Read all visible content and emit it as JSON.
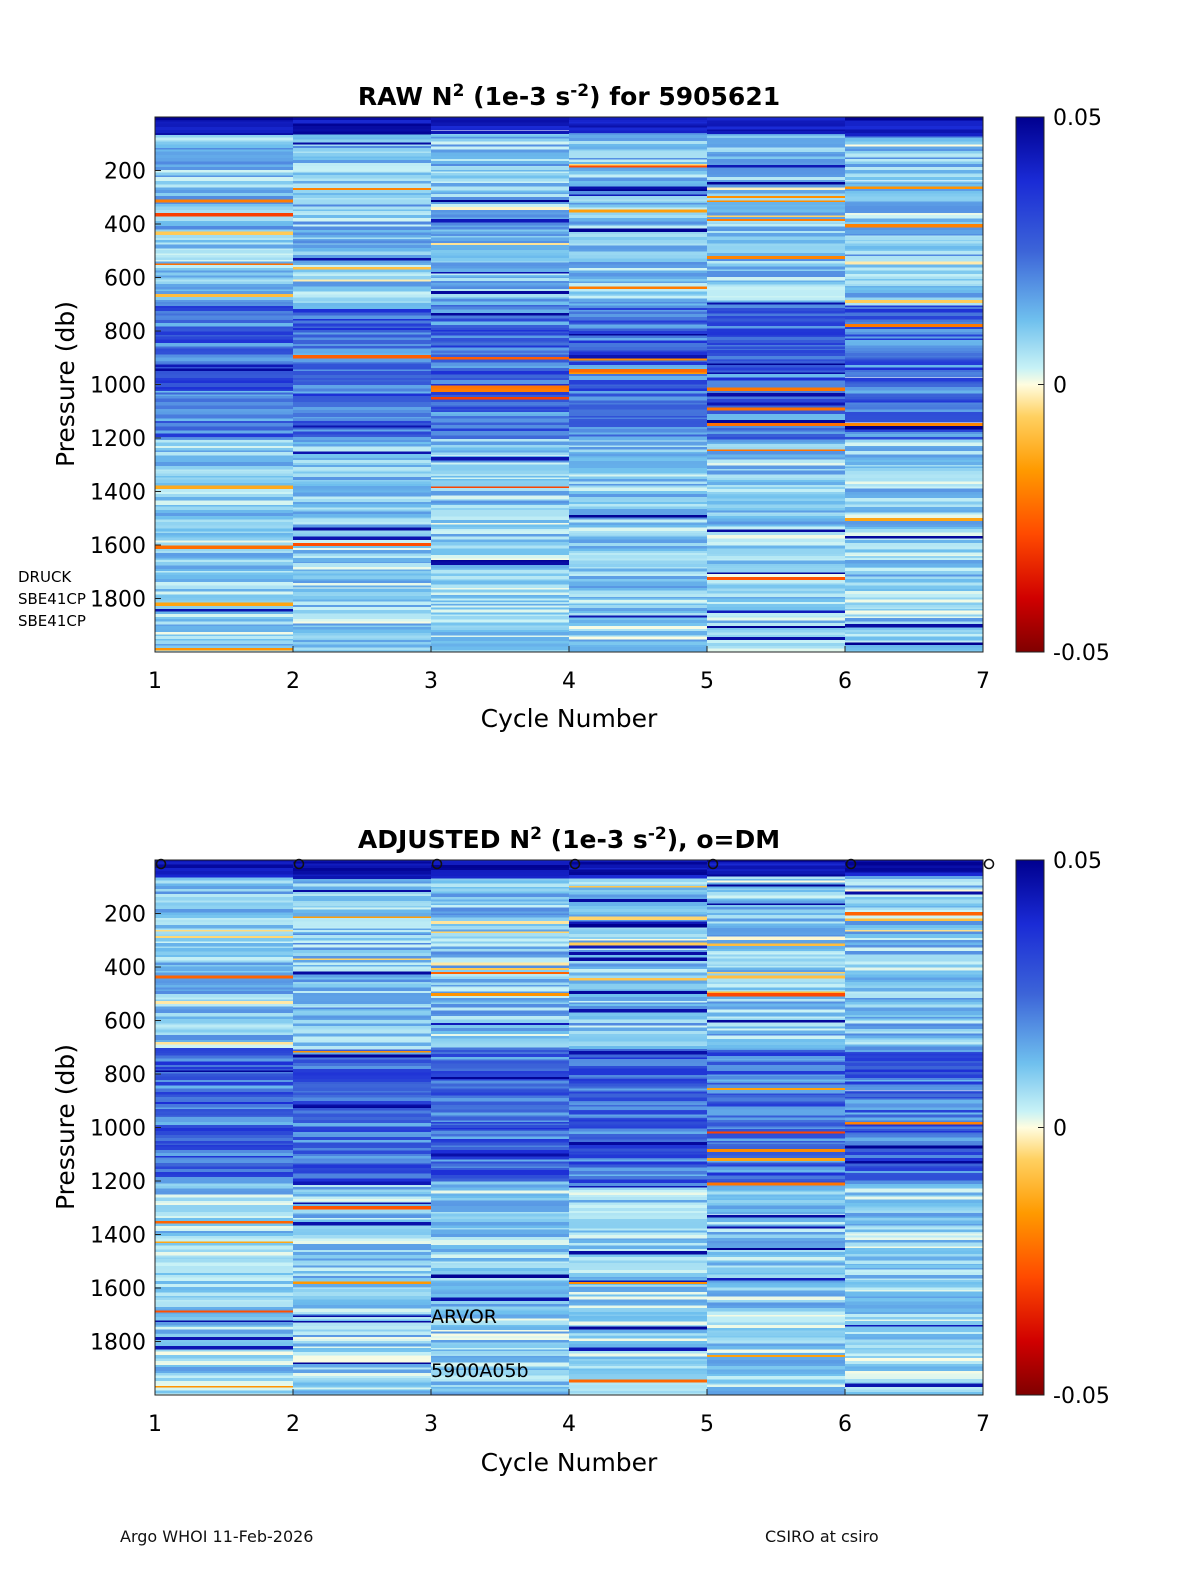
{
  "chart_data": [
    {
      "type": "heatmap",
      "title_parts": [
        "RAW N",
        "2",
        " (1e-3 s",
        "-2",
        ") for 5905621"
      ],
      "title": "RAW N2 (1e-3 s-2) for 5905621",
      "xlabel": "Cycle Number",
      "ylabel": "Pressure (db)",
      "xlim": [
        1,
        7
      ],
      "ylim": [
        0,
        2000
      ],
      "y_reversed": true,
      "xticks": [
        "1",
        "2",
        "3",
        "4",
        "5",
        "6",
        "7"
      ],
      "yticks": [
        "200",
        "400",
        "600",
        "800",
        "1000",
        "1200",
        "1400",
        "1600",
        "1800"
      ],
      "columns": [
        1,
        2,
        3,
        4,
        5,
        6
      ],
      "colorbar": {
        "min": -0.05,
        "max": 0.05,
        "ticks": [
          "0.05",
          "0",
          "-0.05"
        ]
      },
      "annotations": [
        "DRUCK",
        "SBE41CP",
        "SBE41CP"
      ],
      "dm_markers": []
    },
    {
      "type": "heatmap",
      "title_parts": [
        "ADJUSTED N",
        "2",
        " (1e-3 s",
        "-2",
        "), o=DM"
      ],
      "title": "ADJUSTED N2 (1e-3 s-2), o=DM",
      "xlabel": "Cycle Number",
      "ylabel": "Pressure (db)",
      "xlim": [
        1,
        7
      ],
      "ylim": [
        0,
        2000
      ],
      "y_reversed": true,
      "xticks": [
        "1",
        "2",
        "3",
        "4",
        "5",
        "6",
        "7"
      ],
      "yticks": [
        "200",
        "400",
        "600",
        "800",
        "1000",
        "1200",
        "1400",
        "1600",
        "1800"
      ],
      "columns": [
        1,
        2,
        3,
        4,
        5,
        6
      ],
      "colorbar": {
        "min": -0.05,
        "max": 0.05,
        "ticks": [
          "0.05",
          "0",
          "-0.05"
        ]
      },
      "annotations": [
        "ARVOR",
        "5900A05b"
      ],
      "dm_markers": [
        1,
        2,
        3,
        4,
        5,
        6,
        7
      ]
    }
  ],
  "footer": {
    "left": "Argo WHOI 11-Feb-2026",
    "right": "CSIRO at csiro"
  },
  "colors": {
    "dark_blue": "#00008f",
    "blue": "#3c64d8",
    "light_blue": "#8ad8f4",
    "cyan_pale": "#c8f2f6",
    "neutral": "#fffde0",
    "orange": "#ff8c00",
    "dark_red": "#800000"
  }
}
